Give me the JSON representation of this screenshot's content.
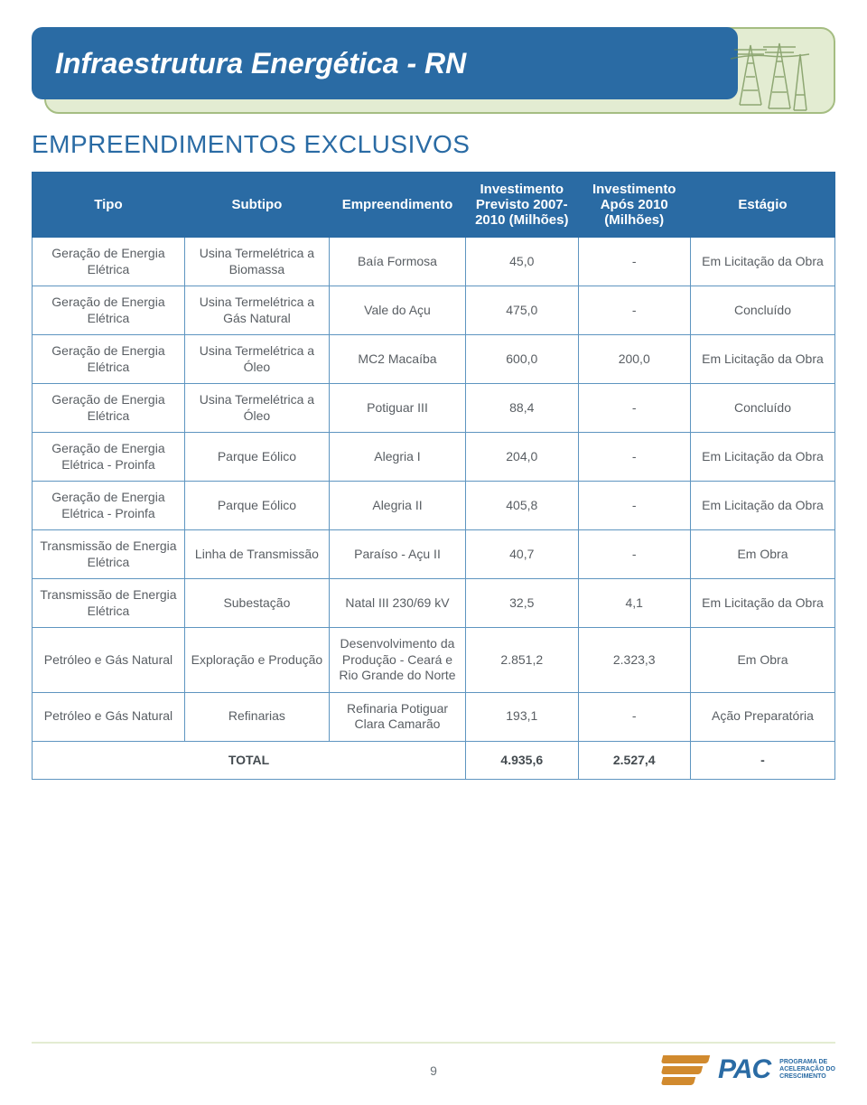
{
  "banner": {
    "title": "Infraestrutura Energética - RN",
    "back_bg": "#e3ecd2",
    "back_border": "#a5bd82",
    "front_bg": "#2a6ba4",
    "title_color": "#ffffff",
    "title_fontsize": 32
  },
  "section_heading": "EMPREENDIMENTOS EXCLUSIVOS",
  "section_color": "#2a6ba4",
  "table": {
    "header_bg": "#2a6ba4",
    "header_color": "#ffffff",
    "cell_border": "#5e95c0",
    "cell_color": "#595e63",
    "cell_fontsize": 14,
    "columns": [
      "Tipo",
      "Subtipo",
      "Empreendimento",
      "Investimento Previsto 2007-2010 (Milhões)",
      "Investimento Após 2010 (Milhões)",
      "Estágio"
    ],
    "rows": [
      {
        "tipo": "Geração de Energia Elétrica",
        "subtipo": "Usina Termelétrica a Biomassa",
        "emp": "Baía Formosa",
        "inv1": "45,0",
        "inv2": "-",
        "est": "Em Licitação da Obra"
      },
      {
        "tipo": "Geração de Energia Elétrica",
        "subtipo": "Usina Termelétrica a Gás Natural",
        "emp": "Vale do Açu",
        "inv1": "475,0",
        "inv2": "-",
        "est": "Concluído"
      },
      {
        "tipo": "Geração de Energia Elétrica",
        "subtipo": "Usina Termelétrica a Óleo",
        "emp": "MC2 Macaíba",
        "inv1": "600,0",
        "inv2": "200,0",
        "est": "Em Licitação da Obra"
      },
      {
        "tipo": "Geração de Energia Elétrica",
        "subtipo": "Usina Termelétrica a Óleo",
        "emp": "Potiguar III",
        "inv1": "88,4",
        "inv2": "-",
        "est": "Concluído"
      },
      {
        "tipo": "Geração de Energia Elétrica - Proinfa",
        "subtipo": "Parque Eólico",
        "emp": "Alegria I",
        "inv1": "204,0",
        "inv2": "-",
        "est": "Em Licitação da Obra"
      },
      {
        "tipo": "Geração de Energia Elétrica - Proinfa",
        "subtipo": "Parque Eólico",
        "emp": "Alegria II",
        "inv1": "405,8",
        "inv2": "-",
        "est": "Em Licitação da Obra"
      },
      {
        "tipo": "Transmissão de Energia Elétrica",
        "subtipo": "Linha de Transmissão",
        "emp": "Paraíso - Açu II",
        "inv1": "40,7",
        "inv2": "-",
        "est": "Em Obra"
      },
      {
        "tipo": "Transmissão de Energia Elétrica",
        "subtipo": "Subestação",
        "emp": "Natal III 230/69 kV",
        "inv1": "32,5",
        "inv2": "4,1",
        "est": "Em Licitação da Obra"
      },
      {
        "tipo": "Petróleo e Gás Natural",
        "subtipo": "Exploração e Produção",
        "emp": "Desenvolvimento da Produção - Ceará e Rio Grande do Norte",
        "inv1": "2.851,2",
        "inv2": "2.323,3",
        "est": "Em Obra"
      },
      {
        "tipo": "Petróleo e Gás Natural",
        "subtipo": "Refinarias",
        "emp": "Refinaria Potiguar Clara Camarão",
        "inv1": "193,1",
        "inv2": "-",
        "est": "Ação Preparatória"
      }
    ],
    "total": {
      "label": "TOTAL",
      "inv1": "4.935,6",
      "inv2": "2.527,4",
      "est": "-"
    }
  },
  "footer": {
    "page_number": "9",
    "logo_text": "PAC",
    "logo_sub1": "PROGRAMA DE",
    "logo_sub2": "ACELERAÇÃO DO",
    "logo_sub3": "CRESCIMENTO",
    "bar_color": "#d18a2e",
    "logo_color": "#2a6ba4"
  }
}
